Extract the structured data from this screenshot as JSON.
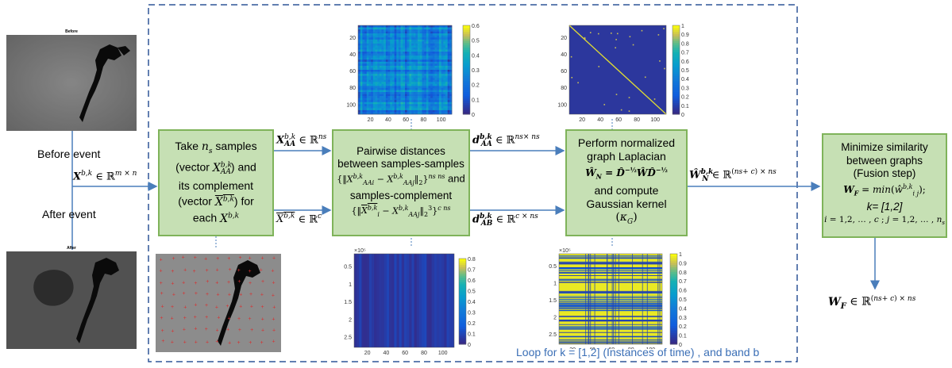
{
  "satellite": {
    "before_title": "Before",
    "after_title": "After",
    "before_label": "Before event",
    "after_label": "After event",
    "input_label": "X^{b,k} ∈ ℝ^{m×n}"
  },
  "boxes": {
    "sampling": {
      "lines": [
        "Take n_s samples",
        "(vector X^{b,k}_{AA}) and",
        "its complement",
        "(vector X̄^{b,k}) for",
        "each X^{b,k}"
      ]
    },
    "pairwise": {
      "lines": [
        "Pairwise distances",
        "between samples-samples",
        "{‖X_{AAi} − X_{AAj}‖₂}  and",
        "samples-complement",
        "{‖X̄_i − X_{AAj}‖₂³}"
      ]
    },
    "laplacian": {
      "lines": [
        "Perform normalized",
        "graph Laplacian",
        "Ŵ_N = D̂^{-½} Ŵ D̂^{-½}",
        "and compute",
        "Gaussian kernel",
        "(κ_G)"
      ]
    },
    "fusion": {
      "lines": [
        "Minimize similarity",
        "between graphs",
        "(Fusion step)",
        "W_F = min(ŵ^{b,k}_{ij});",
        "k= [1,2]",
        "i = 1,2, … , c ; j = 1,2, … , n_s"
      ]
    }
  },
  "arrow_labels": {
    "x_aa": "X_{AA}^{b,k} ∈ ℝ^{n_s}",
    "x_bar": "X̄^{b,k} ∈ ℝ^{c}",
    "d_aa": "d_{AA}^{b,k} ∈ ℝ^{n_s×n_s}",
    "d_ab": "d_{AB}^{b,k} ∈ ℝ^{c×n_s}",
    "w_n": "Ŵ_N^{b,k} ∈ ℝ^{(n_s+c)×n_s}",
    "w_f": "W_F ∈ ℝ^{(n_s+c)×n_s}"
  },
  "loop_label": "Loop for k = [1,2] (Instances of time) , and band b",
  "heatmaps": {
    "h1": {
      "yticks": [
        "20",
        "40",
        "60",
        "80",
        "100"
      ],
      "xticks": [
        "20",
        "40",
        "60",
        "80",
        "100"
      ],
      "cticks": [
        "0.6",
        "0.5",
        "0.4",
        "0.3",
        "0.2",
        "0.1",
        "0"
      ]
    },
    "h2": {
      "yticks": [
        "20",
        "40",
        "60",
        "80",
        "100"
      ],
      "xticks": [
        "20",
        "40",
        "60",
        "80",
        "100"
      ],
      "cticks": [
        "1",
        "0.9",
        "0.8",
        "0.7",
        "0.6",
        "0.5",
        "0.4",
        "0.3",
        "0.2",
        "0.1",
        "0"
      ]
    },
    "h3": {
      "exp": "×10⁵",
      "yticks": [
        "0.5",
        "1",
        "1.5",
        "2",
        "2.5"
      ],
      "xticks": [
        "20",
        "40",
        "60",
        "80",
        "100"
      ],
      "cticks": [
        "0.8",
        "0.7",
        "0.6",
        "0.5",
        "0.4",
        "0.3",
        "0.2",
        "0.1",
        "0"
      ]
    },
    "h4": {
      "exp": "×10⁵",
      "yticks": [
        "0.5",
        "1",
        "1.5",
        "2",
        "2.5"
      ],
      "xticks": [
        "20",
        "40",
        "60",
        "80",
        "100"
      ],
      "cticks": [
        "1",
        "0.9",
        "0.8",
        "0.7",
        "0.6",
        "0.5",
        "0.4",
        "0.3",
        "0.2",
        "0.1",
        "0"
      ]
    }
  },
  "colors": {
    "box_fill": "#c6e0b4",
    "box_border": "#7fb35a",
    "arrow": "#4a7ebb",
    "loop_border": "#2f5597"
  }
}
